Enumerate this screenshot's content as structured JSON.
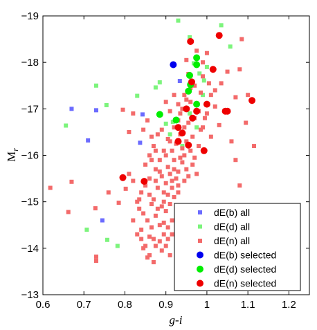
{
  "chart_data": {
    "type": "scatter",
    "title": "",
    "xlabel": "g-i",
    "ylabel_main": "M",
    "ylabel_sub": "r",
    "xlim": [
      0.6,
      1.25
    ],
    "ylim": [
      -13,
      -19
    ],
    "y_inverted": true,
    "grid": false,
    "legend_position": "bottom-right",
    "x_ticks": [
      0.6,
      0.7,
      0.8,
      0.9,
      1.0,
      1.1,
      1.2
    ],
    "x_tick_labels": [
      "0.6",
      "0.7",
      "0.8",
      "0.9",
      "1",
      "1.1",
      "1.2"
    ],
    "y_ticks": [
      -13,
      -14,
      -15,
      -16,
      -17,
      -18,
      -19
    ],
    "y_tick_labels": [
      "−13",
      "−14",
      "−15",
      "−16",
      "−17",
      "−18",
      "−19"
    ],
    "series": [
      {
        "name": "dE(b) all",
        "marker": "square",
        "color": "#6b6bff",
        "points": [
          [
            0.67,
            -17.0
          ],
          [
            0.73,
            -16.97
          ],
          [
            0.71,
            -16.32
          ],
          [
            0.745,
            -14.6
          ],
          [
            0.843,
            -16.88
          ],
          [
            0.837,
            -16.27
          ],
          [
            0.934,
            -17.6
          ]
        ]
      },
      {
        "name": "dE(d) all",
        "marker": "square",
        "color": "#7cf47c",
        "points": [
          [
            0.656,
            -16.64
          ],
          [
            0.707,
            -14.4
          ],
          [
            0.757,
            -14.18
          ],
          [
            0.782,
            -14.05
          ],
          [
            0.73,
            -17.5
          ],
          [
            0.755,
            -17.08
          ],
          [
            0.83,
            -17.28
          ],
          [
            0.875,
            -17.46
          ],
          [
            0.885,
            -17.57
          ],
          [
            0.9,
            -16.68
          ],
          [
            0.917,
            -16.72
          ],
          [
            0.93,
            -18.9
          ],
          [
            0.958,
            -18.54
          ],
          [
            0.968,
            -17.98
          ],
          [
            0.982,
            -17.76
          ],
          [
            0.993,
            -17.61
          ],
          [
            1.0,
            -17.9
          ],
          [
            1.035,
            -18.8
          ],
          [
            1.057,
            -18.34
          ],
          [
            0.975,
            -16.6
          ],
          [
            0.94,
            -16.2
          ],
          [
            0.958,
            -16.9
          ],
          [
            0.99,
            -17.3
          ],
          [
            0.91,
            -16.45
          ]
        ]
      },
      {
        "name": "dE(n) all",
        "marker": "square",
        "color": "#f36a6a",
        "points": [
          [
            0.618,
            -15.3
          ],
          [
            0.662,
            -14.78
          ],
          [
            0.67,
            -15.43
          ],
          [
            0.728,
            -14.86
          ],
          [
            0.73,
            -13.82
          ],
          [
            0.73,
            -13.73
          ],
          [
            0.76,
            -15.2
          ],
          [
            0.785,
            -14.98
          ],
          [
            0.795,
            -16.98
          ],
          [
            0.802,
            -15.28
          ],
          [
            0.81,
            -16.5
          ],
          [
            0.82,
            -14.6
          ],
          [
            0.83,
            -14.3
          ],
          [
            0.84,
            -14.4
          ],
          [
            0.845,
            -14.0
          ],
          [
            0.86,
            -13.85
          ],
          [
            0.87,
            -14.2
          ],
          [
            0.875,
            -14.7
          ],
          [
            0.885,
            -14.5
          ],
          [
            0.895,
            -14.3
          ],
          [
            0.905,
            -14.2
          ],
          [
            0.915,
            -14.6
          ],
          [
            0.83,
            -15.0
          ],
          [
            0.84,
            -15.2
          ],
          [
            0.85,
            -15.35
          ],
          [
            0.86,
            -15.5
          ],
          [
            0.87,
            -15.05
          ],
          [
            0.88,
            -15.3
          ],
          [
            0.89,
            -15.55
          ],
          [
            0.895,
            -15.2
          ],
          [
            0.9,
            -15.4
          ],
          [
            0.905,
            -15.75
          ],
          [
            0.91,
            -15.6
          ],
          [
            0.915,
            -15.3
          ],
          [
            0.92,
            -15.9
          ],
          [
            0.925,
            -15.5
          ],
          [
            0.93,
            -15.65
          ],
          [
            0.94,
            -15.85
          ],
          [
            0.945,
            -16.0
          ],
          [
            0.95,
            -15.7
          ],
          [
            0.96,
            -16.1
          ],
          [
            0.97,
            -15.95
          ],
          [
            0.98,
            -16.2
          ],
          [
            0.85,
            -15.8
          ],
          [
            0.86,
            -16.0
          ],
          [
            0.87,
            -16.2
          ],
          [
            0.88,
            -16.45
          ],
          [
            0.89,
            -16.55
          ],
          [
            0.9,
            -16.0
          ],
          [
            0.91,
            -16.3
          ],
          [
            0.92,
            -16.6
          ],
          [
            0.93,
            -16.75
          ],
          [
            0.935,
            -16.9
          ],
          [
            0.94,
            -17.0
          ],
          [
            0.95,
            -17.2
          ],
          [
            0.96,
            -17.45
          ],
          [
            0.97,
            -16.8
          ],
          [
            0.975,
            -17.1
          ],
          [
            0.985,
            -17.35
          ],
          [
            0.99,
            -17.7
          ],
          [
            1.0,
            -16.9
          ],
          [
            1.01,
            -17.3
          ],
          [
            1.02,
            -17.05
          ],
          [
            1.03,
            -16.65
          ],
          [
            1.035,
            -17.55
          ],
          [
            1.05,
            -17.8
          ],
          [
            1.06,
            -16.3
          ],
          [
            1.07,
            -15.9
          ],
          [
            1.08,
            -15.35
          ],
          [
            1.095,
            -16.7
          ],
          [
            1.1,
            -17.3
          ],
          [
            1.115,
            -16.2
          ],
          [
            1.08,
            -17.85
          ],
          [
            1.085,
            -18.5
          ],
          [
            1.07,
            -17.25
          ],
          [
            0.95,
            -18.05
          ],
          [
            0.955,
            -17.75
          ],
          [
            0.975,
            -18.25
          ],
          [
            1.0,
            -18.2
          ],
          [
            0.97,
            -17.5
          ],
          [
            0.82,
            -16.9
          ],
          [
            0.81,
            -15.6
          ],
          [
            0.82,
            -15.45
          ],
          [
            0.835,
            -15.05
          ],
          [
            0.835,
            -14.85
          ],
          [
            0.845,
            -14.75
          ],
          [
            0.855,
            -14.6
          ],
          [
            0.865,
            -14.45
          ],
          [
            0.875,
            -14.05
          ],
          [
            0.885,
            -14.15
          ],
          [
            0.89,
            -14.9
          ],
          [
            0.9,
            -14.8
          ],
          [
            0.91,
            -14.95
          ],
          [
            0.92,
            -15.1
          ],
          [
            0.93,
            -15.2
          ],
          [
            0.875,
            -15.7
          ],
          [
            0.885,
            -15.9
          ],
          [
            0.895,
            -16.1
          ],
          [
            0.905,
            -16.35
          ],
          [
            0.915,
            -16.1
          ],
          [
            0.925,
            -16.25
          ],
          [
            0.935,
            -16.45
          ],
          [
            0.945,
            -16.6
          ],
          [
            0.955,
            -16.7
          ],
          [
            0.965,
            -16.4
          ],
          [
            0.985,
            -16.55
          ],
          [
            0.995,
            -16.8
          ],
          [
            0.89,
            -13.95
          ],
          [
            0.9,
            -14.05
          ],
          [
            0.855,
            -13.8
          ],
          [
            0.87,
            -13.7
          ],
          [
            0.86,
            -15.15
          ],
          [
            0.865,
            -14.95
          ],
          [
            0.88,
            -14.85
          ],
          [
            0.895,
            -15.0
          ],
          [
            0.905,
            -15.15
          ],
          [
            0.915,
            -15.45
          ],
          [
            0.92,
            -15.7
          ],
          [
            0.93,
            -15.35
          ],
          [
            0.935,
            -15.95
          ],
          [
            0.945,
            -15.45
          ],
          [
            0.955,
            -15.55
          ],
          [
            0.965,
            -15.8
          ],
          [
            0.975,
            -15.6
          ],
          [
            0.95,
            -16.3
          ],
          [
            0.94,
            -16.15
          ],
          [
            0.93,
            -17.1
          ],
          [
            0.945,
            -17.3
          ],
          [
            0.96,
            -17.15
          ],
          [
            0.98,
            -16.95
          ],
          [
            0.99,
            -16.6
          ],
          [
            1.01,
            -16.4
          ],
          [
            1.02,
            -17.4
          ],
          [
            1.005,
            -17.55
          ],
          [
            0.99,
            -18.0
          ],
          [
            0.92,
            -17.3
          ],
          [
            0.91,
            -16.95
          ],
          [
            0.9,
            -17.15
          ],
          [
            0.845,
            -16.55
          ],
          [
            0.855,
            -16.75
          ],
          [
            0.865,
            -16.4
          ],
          [
            0.875,
            -16.1
          ],
          [
            0.865,
            -15.9
          ],
          [
            0.875,
            -15.45
          ],
          [
            0.885,
            -15.65
          ],
          [
            0.84,
            -14.2
          ],
          [
            0.85,
            -14.05
          ],
          [
            0.86,
            -14.25
          ],
          [
            0.91,
            -13.85
          ],
          [
            0.895,
            -14.55
          ],
          [
            0.905,
            -14.45
          ],
          [
            0.915,
            -14.3
          ]
        ]
      },
      {
        "name": "dE(b) selected",
        "marker": "circle",
        "color": "#0000ee",
        "points": [
          [
            0.918,
            -17.95
          ]
        ]
      },
      {
        "name": "dE(d) selected",
        "marker": "circle",
        "color": "#00ee00",
        "points": [
          [
            0.975,
            -18.1
          ],
          [
            0.975,
            -17.95
          ],
          [
            0.958,
            -17.72
          ],
          [
            0.96,
            -17.52
          ],
          [
            0.955,
            -17.38
          ],
          [
            0.975,
            -17.1
          ],
          [
            0.885,
            -16.88
          ],
          [
            0.925,
            -16.76
          ]
        ]
      },
      {
        "name": "dE(n) selected",
        "marker": "circle",
        "color": "#ee0000",
        "points": [
          [
            0.96,
            -18.45
          ],
          [
            1.03,
            -18.58
          ],
          [
            1.015,
            -17.85
          ],
          [
            0.963,
            -17.58
          ],
          [
            0.95,
            -17.0
          ],
          [
            0.965,
            -16.8
          ],
          [
            0.975,
            -16.95
          ],
          [
            0.93,
            -16.6
          ],
          [
            0.94,
            -16.48
          ],
          [
            0.955,
            -16.22
          ],
          [
            0.93,
            -16.3
          ],
          [
            0.993,
            -16.1
          ],
          [
            1.0,
            -17.1
          ],
          [
            1.045,
            -16.95
          ],
          [
            1.05,
            -16.95
          ],
          [
            1.11,
            -17.18
          ],
          [
            0.795,
            -15.52
          ],
          [
            0.847,
            -15.44
          ]
        ]
      }
    ]
  }
}
